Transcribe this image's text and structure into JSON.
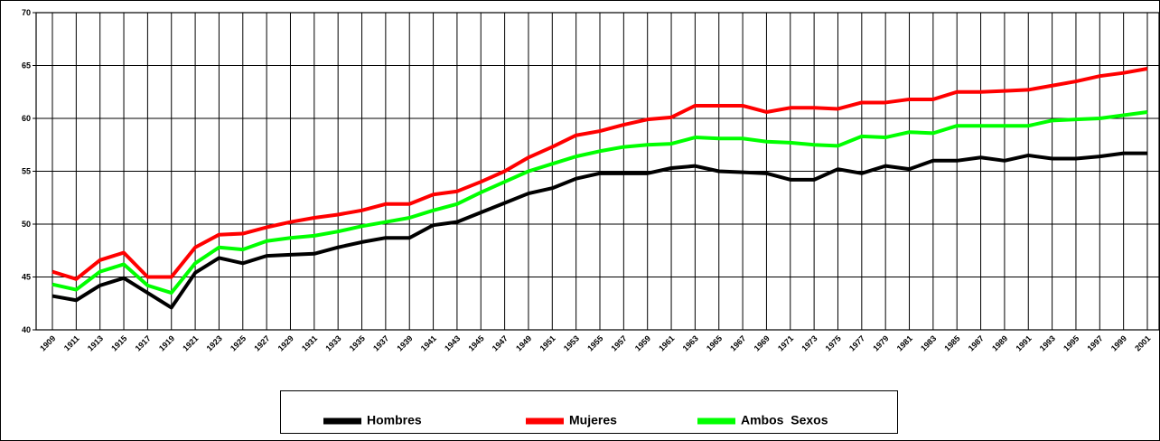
{
  "chart_data": {
    "type": "line",
    "categories": [
      "1909",
      "1911",
      "1913",
      "1915",
      "1917",
      "1919",
      "1921",
      "1923",
      "1925",
      "1927",
      "1929",
      "1931",
      "1933",
      "1935",
      "1937",
      "1939",
      "1941",
      "1943",
      "1945",
      "1947",
      "1949",
      "1951",
      "1953",
      "1955",
      "1957",
      "1959",
      "1961",
      "1963",
      "1965",
      "1967",
      "1969",
      "1971",
      "1973",
      "1975",
      "1977",
      "1979",
      "1981",
      "1983",
      "1985",
      "1987",
      "1989",
      "1991",
      "1993",
      "1995",
      "1997",
      "1999",
      "2001"
    ],
    "series": [
      {
        "name": "Hombres",
        "color": "#000000",
        "values": [
          43.2,
          42.8,
          44.2,
          44.9,
          43.5,
          42.1,
          45.4,
          46.8,
          46.3,
          47.0,
          47.1,
          47.2,
          47.8,
          48.3,
          48.7,
          48.7,
          49.9,
          50.2,
          51.1,
          52.0,
          52.9,
          53.4,
          54.3,
          54.8,
          54.8,
          54.8,
          55.3,
          55.5,
          55.0,
          54.9,
          54.8,
          54.2,
          54.2,
          55.2,
          54.8,
          55.5,
          55.2,
          56.0,
          56.0,
          56.3,
          56.0,
          56.5,
          56.2,
          56.2,
          56.4,
          56.7,
          56.7
        ]
      },
      {
        "name": "Mujeres",
        "color": "#ff0000",
        "values": [
          45.5,
          44.8,
          46.6,
          47.3,
          45.0,
          45.0,
          47.8,
          49.0,
          49.1,
          49.7,
          50.2,
          50.6,
          50.9,
          51.3,
          51.9,
          51.9,
          52.8,
          53.1,
          54.0,
          55.0,
          56.3,
          57.3,
          58.4,
          58.8,
          59.4,
          59.9,
          60.1,
          61.2,
          61.2,
          61.2,
          60.6,
          61.0,
          61.0,
          60.9,
          61.5,
          61.5,
          61.8,
          61.8,
          62.5,
          62.5,
          62.6,
          62.7,
          63.1,
          63.5,
          64.0,
          64.3,
          64.7
        ]
      },
      {
        "name": "Ambos  Sexos",
        "color": "#00ff00",
        "values": [
          44.3,
          43.8,
          45.5,
          46.2,
          44.2,
          43.5,
          46.3,
          47.8,
          47.6,
          48.4,
          48.7,
          48.9,
          49.3,
          49.8,
          50.2,
          50.6,
          51.3,
          51.9,
          53.0,
          54.0,
          55.0,
          55.7,
          56.4,
          56.9,
          57.3,
          57.5,
          57.6,
          58.2,
          58.1,
          58.1,
          57.8,
          57.7,
          57.5,
          57.4,
          58.3,
          58.2,
          58.7,
          58.6,
          59.3,
          59.3,
          59.3,
          59.3,
          59.8,
          59.9,
          60.0,
          60.3,
          60.6
        ]
      }
    ],
    "ylim": [
      40,
      70
    ],
    "yticks": [
      40,
      45,
      50,
      55,
      60,
      65,
      70
    ],
    "grid": true
  }
}
